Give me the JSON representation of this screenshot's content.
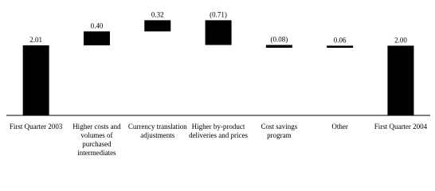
{
  "chart_data": {
    "type": "waterfall",
    "categories": [
      "First Quarter 2003",
      "Higher costs and volumes of purchased intermediates",
      "Currency translation adjustments",
      "Higher by-product deliveries and prices",
      "Cost savings program",
      "Other",
      "First Quarter 2004"
    ],
    "values": [
      2.01,
      0.4,
      0.32,
      -0.71,
      -0.08,
      0.06,
      2.0
    ],
    "value_labels": [
      "2.01",
      "0.40",
      "0.32",
      "(0.71)",
      "(0.08)",
      "0.06",
      "2.00"
    ],
    "color": "#000000"
  }
}
